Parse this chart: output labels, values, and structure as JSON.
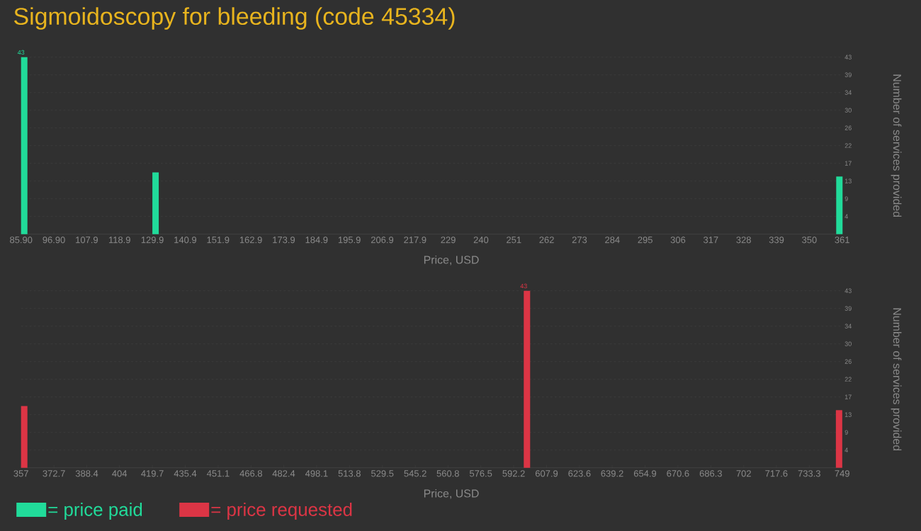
{
  "chart_data": [
    {
      "type": "bar",
      "title": "Sigmoidoscopy for bleeding (code 45334)",
      "xlabel": "Price, USD",
      "ylabel": "Number of services provided",
      "x": [
        85.9,
        129.9,
        359
      ],
      "series": [
        {
          "name": "= price paid",
          "color": "#21db9a",
          "values": [
            43,
            15,
            14
          ],
          "value_labels": [
            "43",
            null,
            null
          ]
        }
      ],
      "xlim": [
        85.9,
        361
      ],
      "xticks": [
        {
          "value": 85.9,
          "label": "85.90"
        },
        {
          "value": 96.9,
          "label": "96.90"
        },
        107.9,
        118.9,
        129.9,
        140.9,
        151.9,
        162.9,
        173.9,
        184.9,
        195.9,
        206.9,
        217.9,
        229,
        240,
        251,
        262,
        273,
        284,
        295,
        306,
        317,
        328,
        339,
        350,
        361
      ],
      "ylim": [
        0,
        43
      ],
      "yticks": [
        {
          "value": 4.3,
          "label": "4"
        },
        {
          "value": 8.6,
          "label": "9"
        },
        {
          "value": 12.9,
          "label": "13"
        },
        {
          "value": 17.2,
          "label": "17"
        },
        {
          "value": 21.5,
          "label": "22"
        },
        {
          "value": 25.8,
          "label": "26"
        },
        {
          "value": 30.1,
          "label": "30"
        },
        {
          "value": 34.4,
          "label": "34"
        },
        {
          "value": 38.7,
          "label": "39"
        },
        43
      ],
      "grid": "y",
      "legend": "bottom left"
    },
    {
      "type": "bar",
      "xlabel": "Price, USD",
      "ylabel": "Number of services provided",
      "x": [
        357,
        597,
        746
      ],
      "series": [
        {
          "name": "= price requested",
          "color": "#dc3545",
          "values": [
            15,
            43,
            14
          ],
          "value_labels": [
            null,
            "43",
            null
          ]
        }
      ],
      "xlim": [
        357,
        749
      ],
      "xticks": [
        357,
        372.7,
        388.4,
        404,
        419.7,
        435.4,
        451.1,
        466.8,
        482.4,
        498.1,
        513.8,
        529.5,
        545.2,
        560.8,
        576.5,
        592.2,
        607.9,
        623.6,
        639.2,
        654.9,
        670.6,
        686.3,
        702,
        717.6,
        733.3,
        749
      ],
      "ylim": [
        0,
        43
      ],
      "yticks": [
        {
          "value": 4.3,
          "label": "4"
        },
        {
          "value": 8.6,
          "label": "9"
        },
        {
          "value": 12.9,
          "label": "13"
        },
        {
          "value": 17.2,
          "label": "17"
        },
        {
          "value": 21.5,
          "label": "22"
        },
        {
          "value": 25.8,
          "label": "26"
        },
        {
          "value": 30.1,
          "label": "30"
        },
        {
          "value": 34.4,
          "label": "34"
        },
        {
          "value": 38.7,
          "label": "39"
        },
        43
      ],
      "grid": "y",
      "legend": "bottom left"
    }
  ]
}
